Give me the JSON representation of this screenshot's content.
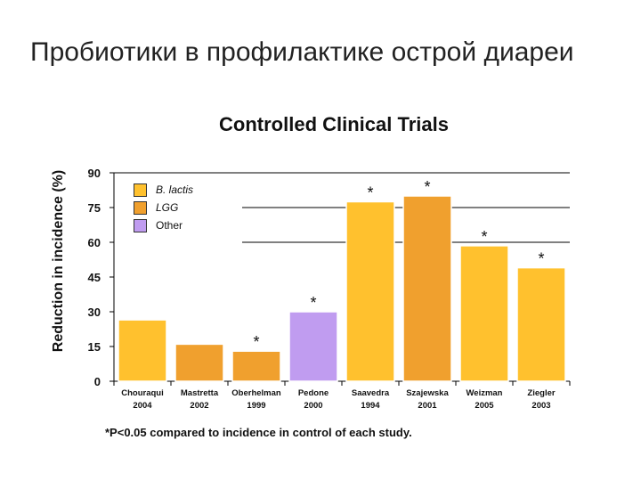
{
  "slide": {
    "title": "Пробиотики в профилактике острой диареи",
    "footnote": "*P<0.05 compared to incidence in control of each study."
  },
  "colors": {
    "B. lactis": "#FFC12E",
    "LGG": "#F0A02E",
    "Other": "#C09CF0",
    "axis": "#000000",
    "grid": "#000000",
    "bar_outline": "#ffffff"
  },
  "chart_data": {
    "type": "bar",
    "title": "Controlled Clinical Trials",
    "ylabel": "Reduction in incidence (%)",
    "xlabel": "",
    "ylim": [
      0,
      90
    ],
    "yticks": [
      0,
      15,
      30,
      45,
      60,
      75,
      90
    ],
    "grid": "horizontal lines at 60, 75, 90",
    "legend_position": "top-left",
    "legend": [
      {
        "label": "B. lactis",
        "italic": true
      },
      {
        "label": "LGG",
        "italic": true
      },
      {
        "label": "Other",
        "italic": false
      }
    ],
    "categories": [
      {
        "name": "Chouraqui",
        "year": "2004"
      },
      {
        "name": "Mastretta",
        "year": "2002"
      },
      {
        "name": "Oberhelman",
        "year": "1999"
      },
      {
        "name": "Pedone",
        "year": "2000"
      },
      {
        "name": "Saavedra",
        "year": "1994"
      },
      {
        "name": "Szajewska",
        "year": "2001"
      },
      {
        "name": "Weizman",
        "year": "2005"
      },
      {
        "name": "Ziegler",
        "year": "2003"
      }
    ],
    "bars": [
      {
        "value": 26.5,
        "group": "B. lactis",
        "significant": false
      },
      {
        "value": 16,
        "group": "LGG",
        "significant": false
      },
      {
        "value": 13,
        "group": "LGG",
        "significant": true
      },
      {
        "value": 30,
        "group": "Other",
        "significant": true
      },
      {
        "value": 77.5,
        "group": "B. lactis",
        "significant": true
      },
      {
        "value": 80,
        "group": "LGG",
        "significant": true
      },
      {
        "value": 58.5,
        "group": "B. lactis",
        "significant": true
      },
      {
        "value": 49,
        "group": "B. lactis",
        "significant": true
      }
    ],
    "significance_marker": "*"
  }
}
